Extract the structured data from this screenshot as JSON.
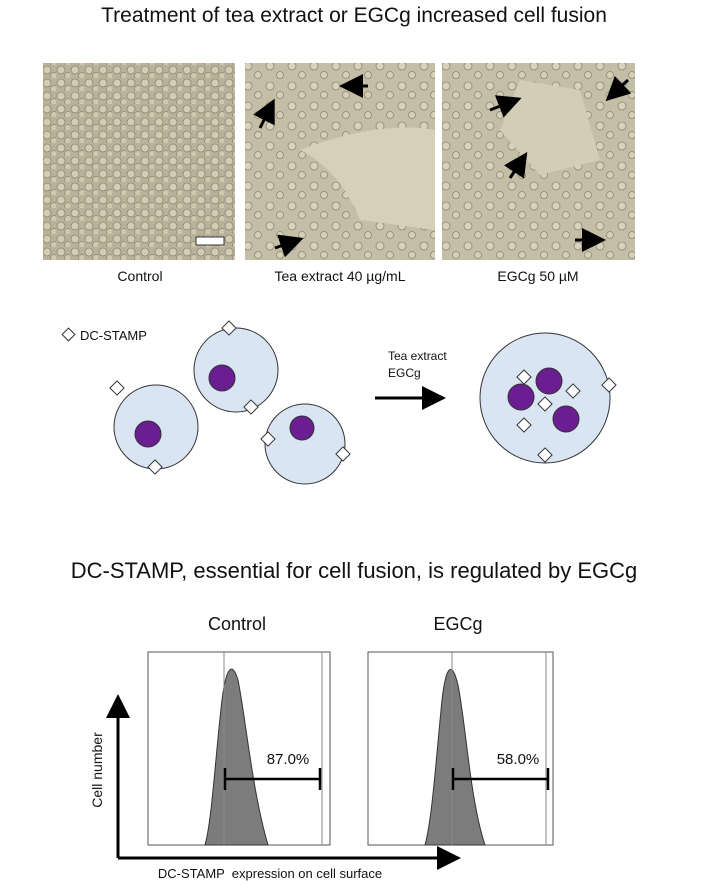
{
  "fusion": {
    "title": "Treatment of tea extract or EGCg increased cell fusion",
    "images": [
      {
        "label": "Control"
      },
      {
        "label": "Tea extract 40 µg/mL"
      },
      {
        "label": "EGCg 50 µM"
      }
    ]
  },
  "diagram": {
    "legend": "DC-STAMP",
    "arrow_label": [
      "Tea extract",
      "EGCg"
    ]
  },
  "flow": {
    "title": "DC-STAMP, essential for cell fusion, is regulated by EGCg",
    "y_axis_label": "Cell number",
    "x_axis_label": "DC-STAMP  expression on cell surface",
    "panels": [
      {
        "title": "Control",
        "gate_label": "87.0%"
      },
      {
        "title": "EGCg",
        "gate_label": "58.0%"
      }
    ]
  }
}
